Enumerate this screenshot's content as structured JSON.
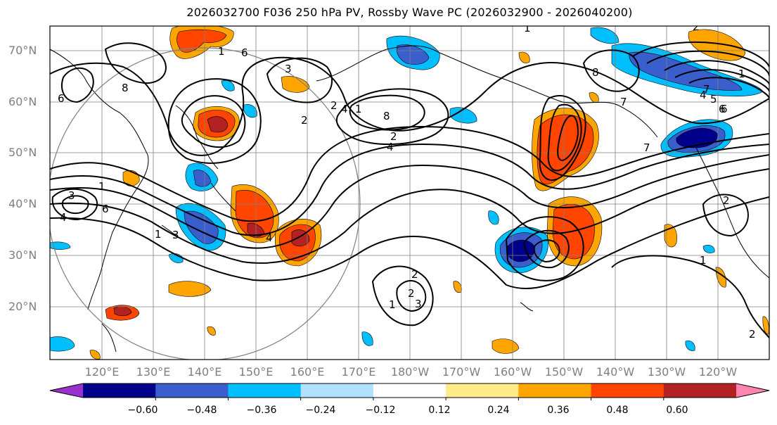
{
  "title": "2026032700 F036 250 hPa PV, Rossby Wave PC (2026032900 - 2026040200)",
  "lat_labels": [
    "70°N",
    "60°N",
    "50°N",
    "40°N",
    "30°N",
    "20°N"
  ],
  "lon_labels": [
    "120°E",
    "130°E",
    "140°E",
    "150°E",
    "160°E",
    "170°E",
    "180°W",
    "170°W",
    "160°W",
    "150°W",
    "140°W",
    "130°W",
    "120°W"
  ],
  "colorbar": {
    "ticks": [
      "−0.60",
      "−0.48",
      "−0.36",
      "−0.24",
      "−0.12",
      "0.12",
      "0.24",
      "0.36",
      "0.48",
      "0.60"
    ],
    "colors": [
      "#9932cc",
      "#00008b",
      "#3a5fcd",
      "#00bfff",
      "#b0e2ff",
      "#ffffff",
      "#ffeb8a",
      "#ffa500",
      "#ff4500",
      "#b22222",
      "#ff85b0"
    ]
  },
  "contour_labels": [
    "1",
    "6",
    "8",
    "6",
    "3",
    "2",
    "2",
    "4",
    "8",
    "4",
    "1",
    "2",
    "1",
    "6",
    "4",
    "3",
    "1",
    "3",
    "4",
    "2",
    "1",
    "2",
    "3",
    "2",
    "8",
    "7",
    "6",
    "7",
    "1",
    "4",
    "5",
    "6",
    "7",
    "1",
    "2",
    "1",
    "2"
  ],
  "colors": {
    "grid": "#808080",
    "contour": "#000000",
    "frame": "#000000"
  }
}
